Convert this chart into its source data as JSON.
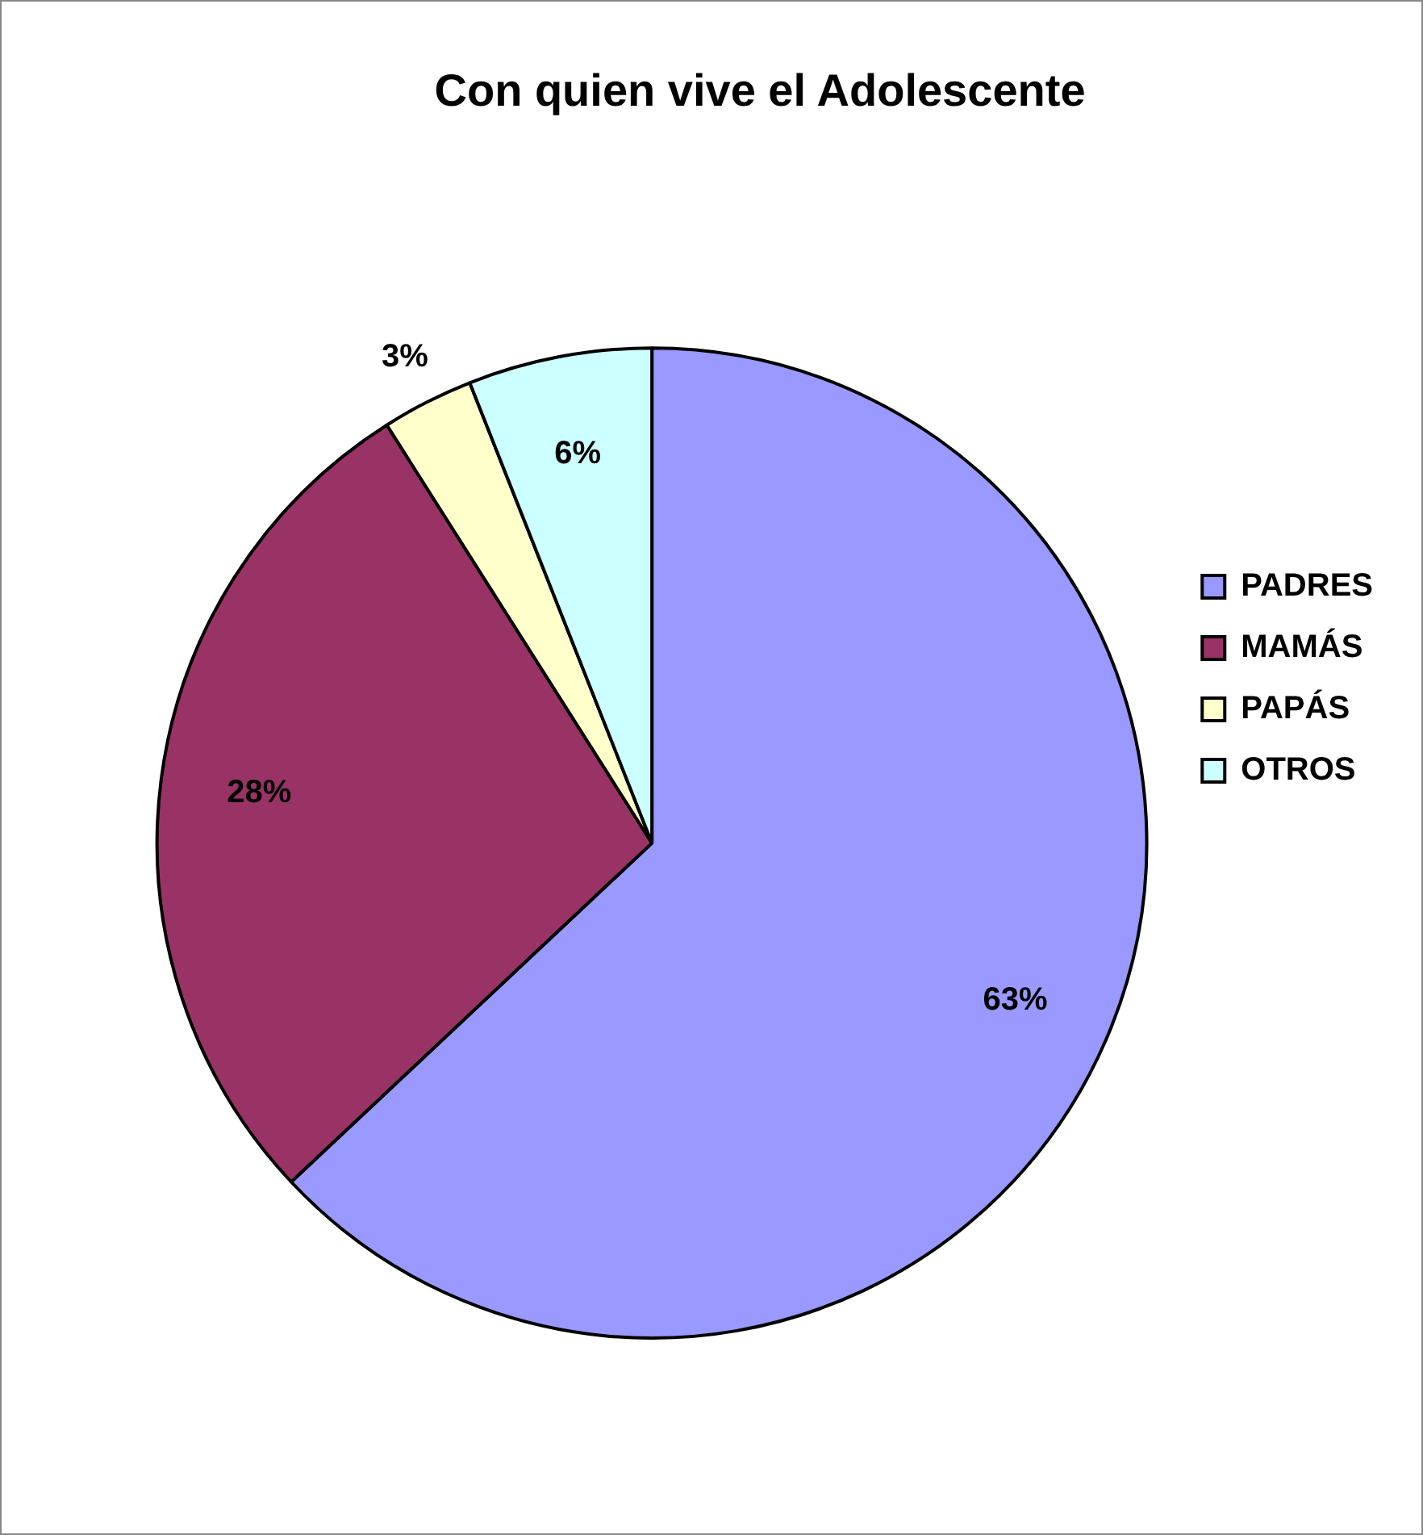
{
  "chart_data": {
    "type": "pie",
    "title": "Con quien vive el Adolescente",
    "categories": [
      "PADRES",
      "MAMÁS",
      "PAPÁS",
      "OTROS"
    ],
    "values": [
      63,
      28,
      3,
      6
    ],
    "colors": [
      "#9999ff",
      "#993366",
      "#ffffcc",
      "#ccffff"
    ],
    "value_labels": [
      "63%",
      "28%",
      "3%",
      "6%"
    ],
    "legend": "right"
  }
}
